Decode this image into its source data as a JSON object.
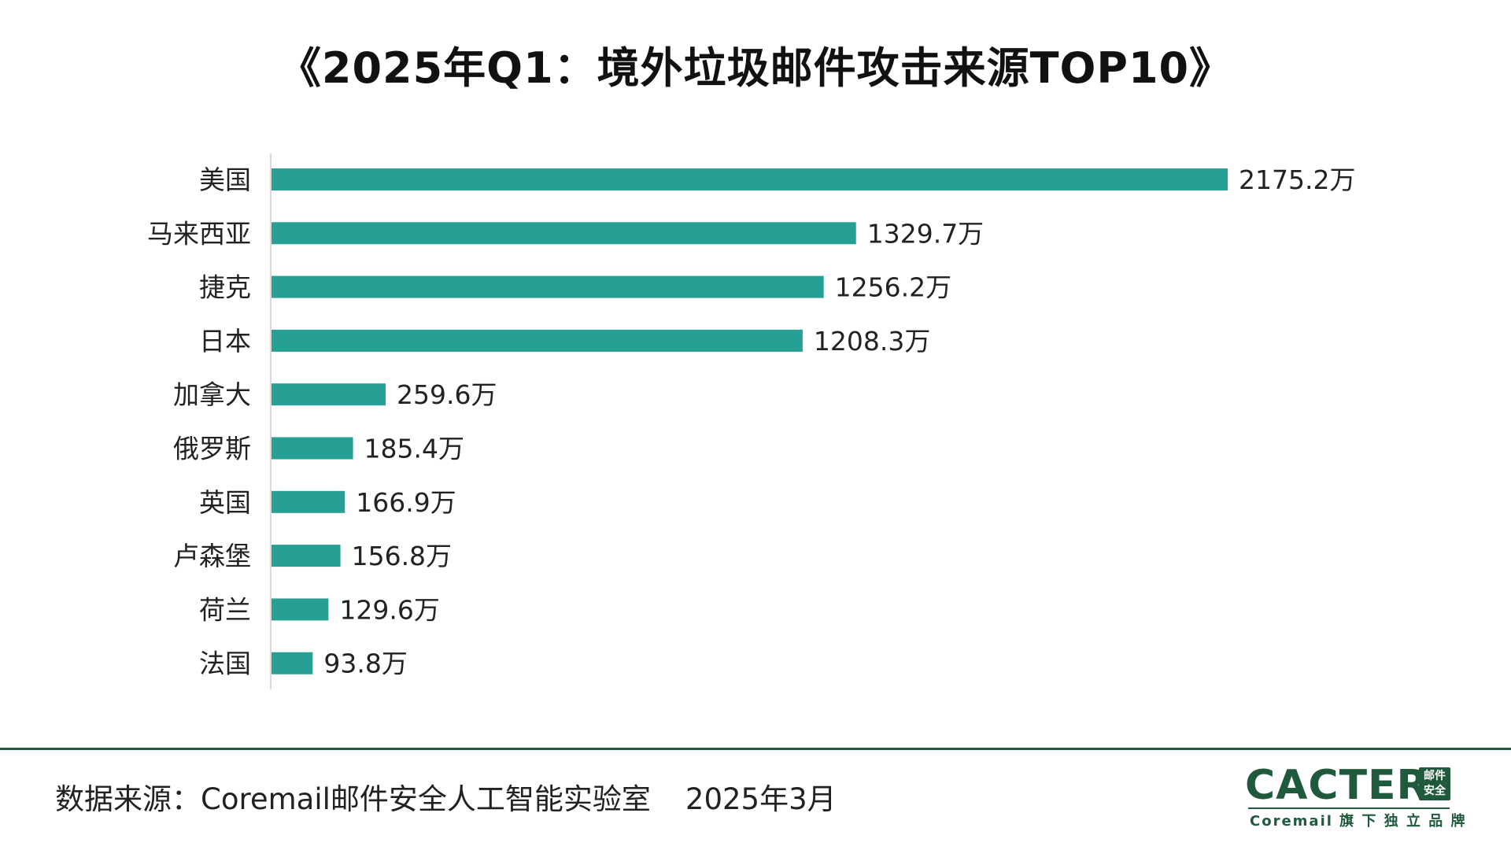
{
  "header": {
    "title": "《2025年Q1：境外垃圾邮件攻击来源TOP10》"
  },
  "chart_data": {
    "type": "bar",
    "orientation": "horizontal",
    "title": "《2025年Q1：境外垃圾邮件攻击来源TOP10》",
    "categories": [
      "美国",
      "马来西亚",
      "捷克",
      "日本",
      "加拿大",
      "俄罗斯",
      "英国",
      "卢森堡",
      "荷兰",
      "法国"
    ],
    "values": [
      2175.2,
      1329.7,
      1256.2,
      1208.3,
      259.6,
      185.4,
      166.9,
      156.8,
      129.6,
      93.8
    ],
    "value_labels": [
      "2175.2万",
      "1329.7万",
      "1256.2万",
      "1208.3万",
      "259.6万",
      "185.4万",
      "166.9万",
      "156.8万",
      "129.6万",
      "93.8万"
    ],
    "unit": "万",
    "xlim": [
      0,
      2175.2
    ],
    "grid": false,
    "legend": "none",
    "bar_color": "#26a095"
  },
  "footer": {
    "source": "数据来源：Coremail邮件安全人工智能实验室",
    "date": "2025年3月"
  },
  "logo": {
    "brand": "CACTER",
    "badge_top": "邮件",
    "badge_bottom": "安全",
    "sub": "Coremail 旗 下 独 立 品 牌"
  },
  "colors": {
    "bar": "#26a095",
    "brand": "#1f5a3c"
  }
}
